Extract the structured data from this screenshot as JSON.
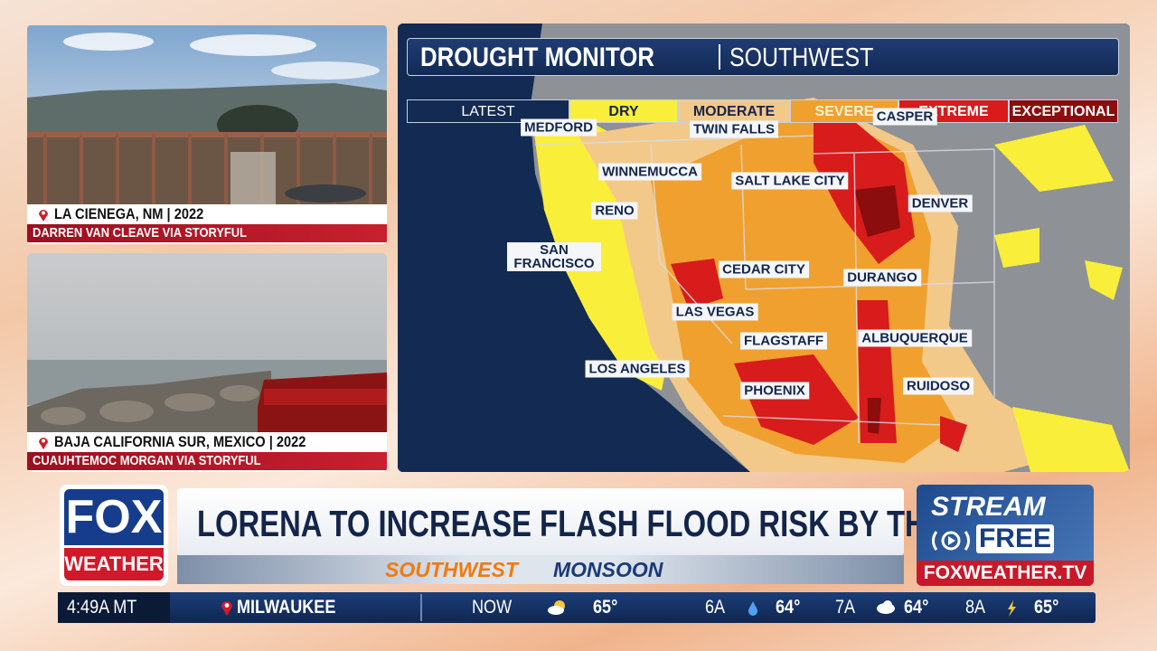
{
  "panels": [
    {
      "location": "LA CIENEGA, NM | 2022",
      "credit": "DARREN VAN CLEAVE VIA STORYFUL"
    },
    {
      "location": "BAJA CALIFORNIA SUR, MEXICO | 2022",
      "credit": "CUAUHTEMOC MORGAN VIA STORYFUL"
    }
  ],
  "map": {
    "title": "DROUGHT MONITOR",
    "region": "SOUTHWEST",
    "legend": [
      "LATEST",
      "DRY",
      "MODERATE",
      "SEVERE",
      "EXTREME",
      "EXCEPTIONAL"
    ],
    "cities": [
      "MEDFORD",
      "TWIN FALLS",
      "CASPER",
      "WINNEMUCCA",
      "SALT LAKE CITY",
      "DENVER",
      "RENO",
      "SAN FRANCISCO",
      "CEDAR CITY",
      "DURANGO",
      "LAS VEGAS",
      "FLAGSTAFF",
      "ALBUQUERQUE",
      "LOS ANGELES",
      "PHOENIX",
      "RUIDOSO"
    ]
  },
  "logo": {
    "top": "FOX",
    "bottom": "WEATHER"
  },
  "headline": "LORENA TO INCREASE FLASH FLOOD RISK BY THURSDAY",
  "subheadline": {
    "first": "SOUTHWEST",
    "second": "MONSOON"
  },
  "stream": {
    "line1": "STREAM",
    "line2": "FREE",
    "url": "FOXWEATHER.TV"
  },
  "ticker": {
    "time": "4:49A MT",
    "location": "MILWAUKEE",
    "forecast": [
      {
        "label": "NOW",
        "temp": "65°"
      },
      {
        "label": "6A",
        "temp": "64°"
      },
      {
        "label": "7A",
        "temp": "64°"
      },
      {
        "label": "8A",
        "temp": "65°"
      }
    ]
  }
}
